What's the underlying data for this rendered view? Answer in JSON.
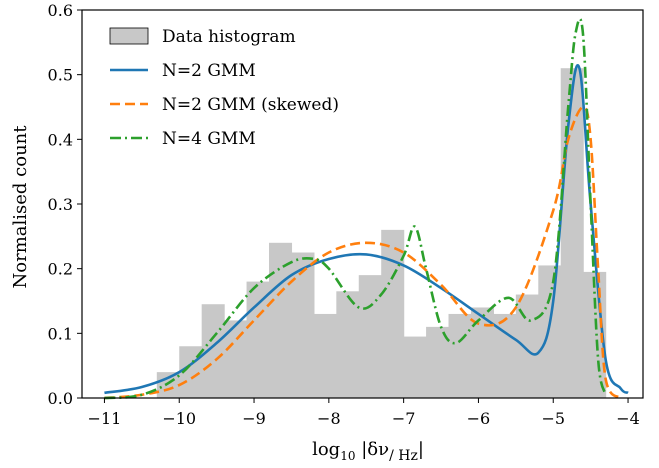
{
  "chart_data": {
    "type": "bar",
    "xlabel": {
      "base": "log",
      "sub": "10",
      "mid": " |δν",
      "unit": "/ Hz",
      "end": "|"
    },
    "ylabel": "Normalised count",
    "xlim": [
      -11.3,
      -3.8
    ],
    "ylim": [
      0,
      0.6
    ],
    "xticks": [
      -11,
      -10,
      -9,
      -8,
      -7,
      -6,
      -5,
      -4
    ],
    "xtick_labels": [
      "−11",
      "−10",
      "−9",
      "−8",
      "−7",
      "−6",
      "−5",
      "−4"
    ],
    "yticks": [
      0.0,
      0.1,
      0.2,
      0.3,
      0.4,
      0.5,
      0.6
    ],
    "ytick_labels": [
      "0.0",
      "0.1",
      "0.2",
      "0.3",
      "0.4",
      "0.5",
      "0.6"
    ],
    "grid": false,
    "legend_position": "top-left",
    "histogram": {
      "name": "Data histogram",
      "color": "#c8c8c8",
      "bin_edges": [
        -10.3,
        -10.0,
        -9.7,
        -9.4,
        -9.1,
        -8.8,
        -8.5,
        -8.2,
        -7.9,
        -7.6,
        -7.3,
        -7.0,
        -6.7,
        -6.4,
        -6.1,
        -5.8,
        -5.5,
        -5.2,
        -4.9,
        -4.6,
        -4.3
      ],
      "values": [
        0.04,
        0.08,
        0.145,
        0.12,
        0.18,
        0.24,
        0.225,
        0.13,
        0.165,
        0.19,
        0.26,
        0.095,
        0.11,
        0.13,
        0.14,
        0.13,
        0.16,
        0.205,
        0.51,
        0.195
      ]
    },
    "series": [
      {
        "name": "N=2 GMM",
        "color": "#1f77b4",
        "style": "solid",
        "x": [
          -11.0,
          -10.5,
          -10.0,
          -9.5,
          -9.0,
          -8.5,
          -8.0,
          -7.5,
          -7.0,
          -6.5,
          -6.0,
          -5.5,
          -5.2,
          -5.0,
          -4.8,
          -4.65,
          -4.5,
          -4.3,
          -4.1,
          -4.0
        ],
        "y": [
          0.008,
          0.017,
          0.04,
          0.085,
          0.14,
          0.19,
          0.215,
          0.222,
          0.205,
          0.17,
          0.13,
          0.09,
          0.07,
          0.15,
          0.42,
          0.51,
          0.3,
          0.06,
          0.015,
          0.008
        ]
      },
      {
        "name": "N=2 GMM (skewed)",
        "color": "#ff7f0e",
        "style": "dashed",
        "x": [
          -11.0,
          -10.5,
          -10.0,
          -9.5,
          -9.0,
          -8.5,
          -8.0,
          -7.5,
          -7.0,
          -6.5,
          -6.0,
          -5.5,
          -5.0,
          -4.8,
          -4.6,
          -4.5,
          -4.4,
          -4.3,
          -4.1
        ],
        "y": [
          0.0,
          0.005,
          0.02,
          0.06,
          0.12,
          0.18,
          0.225,
          0.24,
          0.225,
          0.175,
          0.115,
          0.14,
          0.29,
          0.4,
          0.45,
          0.4,
          0.2,
          0.03,
          0.0
        ]
      },
      {
        "name": "N=4 GMM",
        "color": "#2ca02c",
        "style": "dashdot",
        "x": [
          -11.0,
          -10.5,
          -10.0,
          -9.5,
          -9.0,
          -8.5,
          -8.2,
          -8.0,
          -7.6,
          -7.3,
          -7.0,
          -6.85,
          -6.7,
          -6.5,
          -6.3,
          -6.0,
          -5.6,
          -5.3,
          -5.0,
          -4.8,
          -4.7,
          -4.6,
          -4.5,
          -4.4,
          -4.3
        ],
        "y": [
          0.0,
          0.005,
          0.035,
          0.1,
          0.17,
          0.21,
          0.215,
          0.2,
          0.14,
          0.16,
          0.22,
          0.265,
          0.2,
          0.11,
          0.085,
          0.12,
          0.155,
          0.12,
          0.18,
          0.45,
          0.565,
          0.56,
          0.3,
          0.06,
          0.005
        ]
      }
    ]
  }
}
